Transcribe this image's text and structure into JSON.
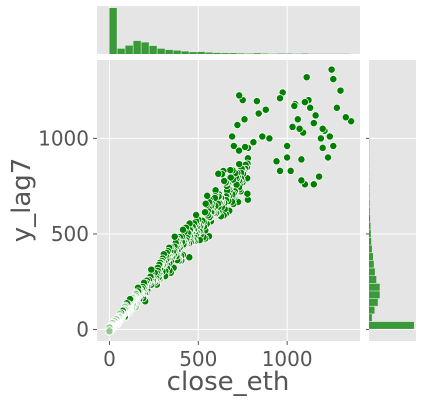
{
  "chart_data": {
    "type": "scatter",
    "kind": "jointplot with marginal histograms",
    "xlabel": "close_eth",
    "ylabel": "y_lag7",
    "xlim": [
      -70,
      1410
    ],
    "ylim": [
      -60,
      1410
    ],
    "x_ticks": [
      0,
      500,
      1000
    ],
    "y_ticks": [
      0,
      500,
      1000
    ],
    "x_tick_labels": [
      "0",
      "500",
      "1000"
    ],
    "y_tick_labels": [
      "0",
      "500",
      "1000"
    ],
    "grid": true,
    "colors": {
      "background": "#e5e5e5",
      "grid": "#ffffff",
      "points": "#008000",
      "points_light": "#90c890",
      "point_edge": "#ffffff",
      "hist": "#3a9a3a"
    },
    "x_hist": {
      "bin_width": 45,
      "bin_start": 0,
      "counts": [
        245,
        28,
        45,
        70,
        62,
        43,
        28,
        22,
        18,
        14,
        10,
        11,
        8,
        6,
        5,
        5,
        3,
        2,
        4,
        2,
        1,
        2,
        2,
        1,
        2,
        1,
        1,
        1,
        1,
        1
      ]
    },
    "y_hist": {
      "bin_width": 40,
      "bin_start": 0,
      "counts": [
        245,
        16,
        30,
        48,
        58,
        58,
        40,
        32,
        26,
        22,
        16,
        12,
        10,
        8,
        6,
        4,
        3,
        2,
        2,
        1,
        1,
        1,
        1,
        1,
        1,
        0,
        0,
        0,
        0,
        0,
        0,
        0,
        0,
        0,
        0
      ]
    },
    "outliers": [
      [
        730,
        1225
      ],
      [
        750,
        1200
      ],
      [
        830,
        1195
      ],
      [
        840,
        1130
      ],
      [
        880,
        1150
      ],
      [
        960,
        1210
      ],
      [
        975,
        1240
      ],
      [
        1030,
        1060
      ],
      [
        1040,
        1170
      ],
      [
        1045,
        1180
      ],
      [
        1060,
        1100
      ],
      [
        1070,
        1050
      ],
      [
        1090,
        1030
      ],
      [
        1100,
        1190
      ],
      [
        1110,
        1320
      ],
      [
        1120,
        1200
      ],
      [
        1130,
        1160
      ],
      [
        1150,
        1080
      ],
      [
        1160,
        1120
      ],
      [
        1190,
        1000
      ],
      [
        1200,
        1050
      ],
      [
        1210,
        1040
      ],
      [
        1230,
        900
      ],
      [
        1240,
        1010
      ],
      [
        1250,
        1360
      ],
      [
        1260,
        1310
      ],
      [
        1280,
        1160
      ],
      [
        1300,
        1250
      ],
      [
        1330,
        1110
      ],
      [
        1360,
        1090
      ],
      [
        690,
        1010
      ],
      [
        700,
        960
      ],
      [
        720,
        1070
      ],
      [
        760,
        1100
      ],
      [
        900,
        1000
      ],
      [
        1000,
        960
      ],
      [
        940,
        880
      ],
      [
        960,
        830
      ],
      [
        1020,
        830
      ],
      [
        1080,
        780
      ],
      [
        1100,
        760
      ],
      [
        1150,
        760
      ],
      [
        1180,
        800
      ],
      [
        780,
        950
      ],
      [
        810,
        980
      ],
      [
        860,
        1010
      ],
      [
        1000,
        900
      ],
      [
        1080,
        890
      ],
      [
        1200,
        950
      ],
      [
        1260,
        960
      ]
    ]
  }
}
